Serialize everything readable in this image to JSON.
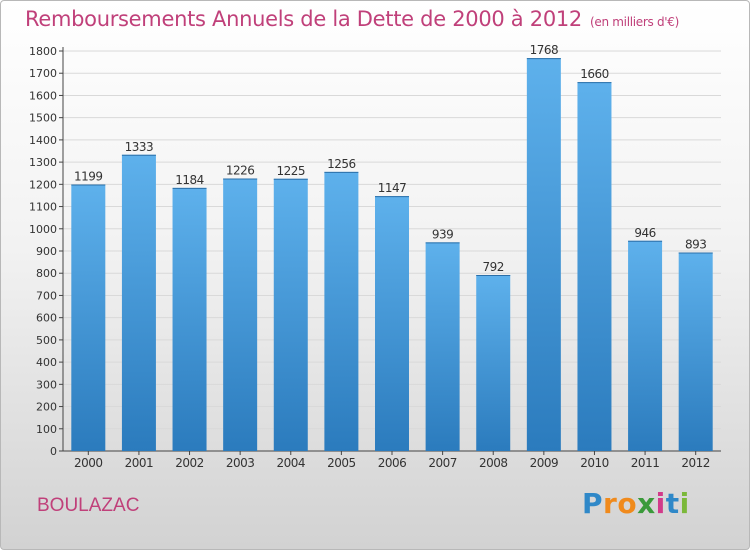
{
  "title": "Remboursements Annuels de la Dette de 2000 à 2012",
  "subtitle": "(en milliers d'€)",
  "location": "BOULAZAC",
  "logo": {
    "text": "Proxiti",
    "letters": [
      "P",
      "r",
      "o",
      "x",
      "i",
      "t",
      "i"
    ],
    "colors": [
      "#2f88c8",
      "#f08a1c",
      "#f08a1c",
      "#3a9a3a",
      "#d23a8a",
      "#2f88c8",
      "#7bb83a"
    ]
  },
  "colors": {
    "title": "#c0407a",
    "bar_top": "#5eb1ec",
    "bar_bottom": "#2b7bbd",
    "grid": "#d9d9d9"
  },
  "chart_data": {
    "type": "bar",
    "title": "Remboursements Annuels de la Dette de 2000 à 2012",
    "subtitle": "(en milliers d'€)",
    "categories": [
      "2000",
      "2001",
      "2002",
      "2003",
      "2004",
      "2005",
      "2006",
      "2007",
      "2008",
      "2009",
      "2010",
      "2011",
      "2012"
    ],
    "values": [
      1199,
      1333,
      1184,
      1226,
      1225,
      1256,
      1147,
      939,
      792,
      1768,
      1660,
      946,
      893
    ],
    "ylim": [
      0,
      1800
    ],
    "yticks": [
      0,
      100,
      200,
      300,
      400,
      500,
      600,
      700,
      800,
      900,
      1000,
      1100,
      1200,
      1300,
      1400,
      1500,
      1600,
      1700,
      1800
    ],
    "grid": true,
    "legend": "none"
  }
}
